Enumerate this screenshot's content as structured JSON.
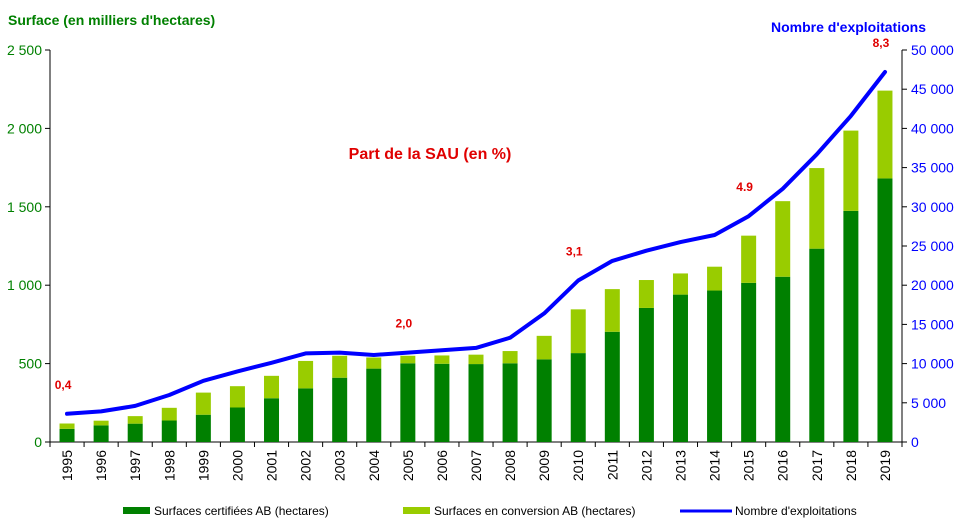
{
  "chart_data": {
    "type": "bar+line",
    "left_axis_title": "Surface (en milliers d'hectares)",
    "right_axis_title": "Nombre d'exploitations",
    "center_annotation": "Part de la SAU (en %)",
    "categories": [
      "1995",
      "1996",
      "1997",
      "1998",
      "1999",
      "2000",
      "2001",
      "2002",
      "2003",
      "2004",
      "2005",
      "2006",
      "2007",
      "2008",
      "2009",
      "2010",
      "2011",
      "2012",
      "2013",
      "2014",
      "2015",
      "2016",
      "2017",
      "2018",
      "2019"
    ],
    "series": [
      {
        "name": "Surfaces certifiées AB (hectares)",
        "kind": "bar-stacked",
        "axis": "left",
        "color": "#008000",
        "values": [
          84,
          106,
          117,
          137,
          174,
          220,
          279,
          342,
          410,
          468,
          502,
          499,
          497,
          502,
          527,
          567,
          703,
          855,
          940,
          966,
          1015,
          1054,
          1233,
          1474,
          1681
        ]
      },
      {
        "name": "Surfaces en conversion AB (hectares)",
        "kind": "bar-stacked",
        "axis": "left",
        "color": "#99CC00",
        "values": [
          34,
          30,
          48,
          81,
          141,
          136,
          143,
          175,
          140,
          71,
          48,
          53,
          60,
          78,
          150,
          279,
          272,
          178,
          135,
          152,
          301,
          482,
          514,
          512,
          560
        ]
      },
      {
        "name": "Nombre d'exploitations",
        "kind": "line",
        "axis": "right",
        "color": "#0000FF",
        "values": [
          3600,
          3900,
          4600,
          6000,
          7800,
          9000,
          10100,
          11300,
          11400,
          11100,
          11400,
          11700,
          12000,
          13300,
          16400,
          20600,
          23100,
          24400,
          25500,
          26400,
          28800,
          32300,
          36700,
          41600,
          47200
        ]
      }
    ],
    "left_axis": {
      "min": 0,
      "max": 2500,
      "step": 500,
      "tick_labels": [
        "0",
        "500",
        "1 000",
        "1 500",
        "2 000",
        "2 500"
      ]
    },
    "right_axis": {
      "min": 0,
      "max": 50000,
      "step": 5000,
      "tick_labels": [
        "0",
        "5 000",
        "10 000",
        "15 000",
        "20 000",
        "25 000",
        "30 000",
        "35 000",
        "40 000",
        "45 000",
        "50 000"
      ]
    },
    "sau_labels": [
      {
        "year": "1995",
        "text": "0,4"
      },
      {
        "year": "2005",
        "text": "2,0"
      },
      {
        "year": "2010",
        "text": "3,1"
      },
      {
        "year": "2015",
        "text": "4.9"
      },
      {
        "year": "2019",
        "text": "8,3"
      }
    ],
    "legend_position": "bottom",
    "colors": {
      "left_axis": "#008000",
      "right_axis": "#0000FF",
      "annotation": "#E00000"
    }
  }
}
